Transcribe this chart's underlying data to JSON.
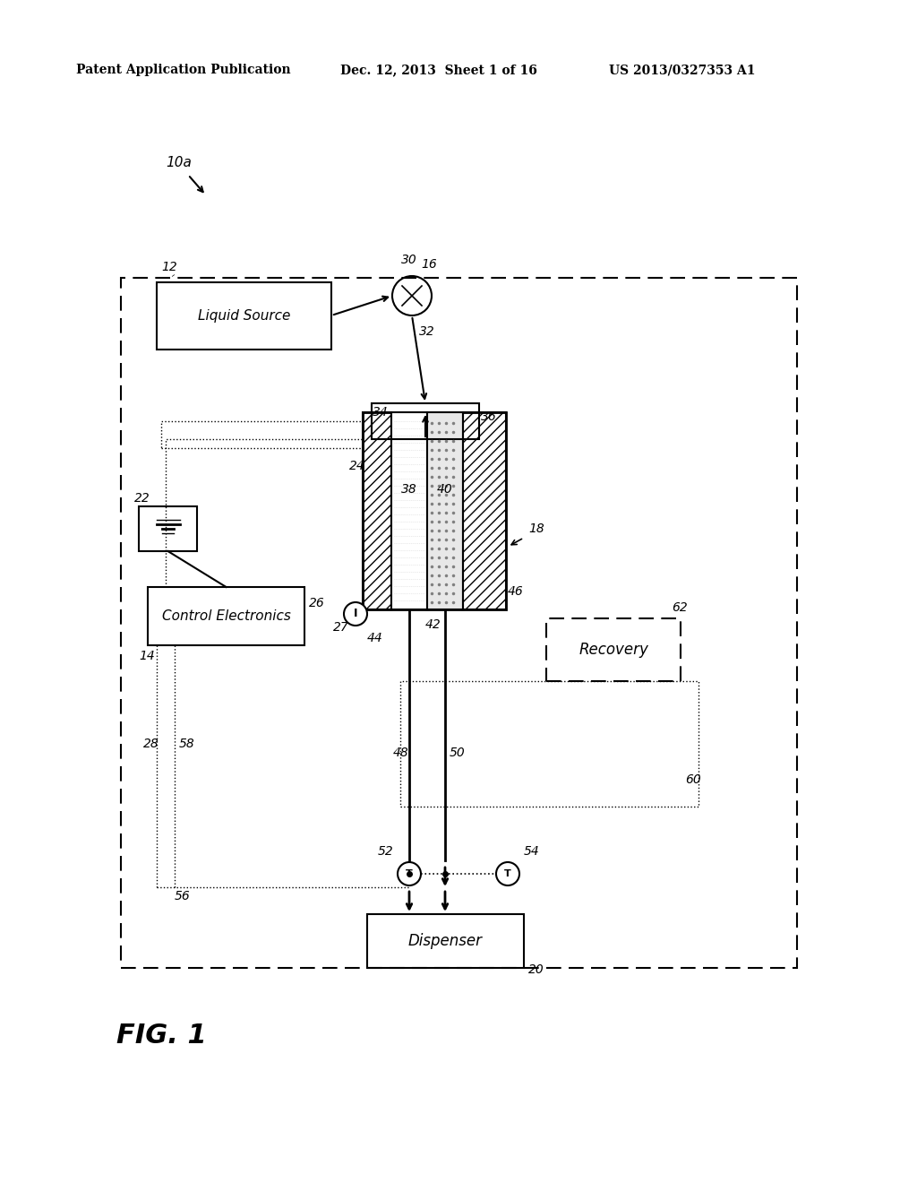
{
  "bg_color": "#ffffff",
  "header_left": "Patent Application Publication",
  "header_mid": "Dec. 12, 2013  Sheet 1 of 16",
  "header_right": "US 2013/0327353 A1",
  "fig_label": "FIG. 1",
  "label_10a": "10a",
  "label_12": "12",
  "label_14": "14",
  "label_16": "16",
  "label_18": "18",
  "label_20": "20",
  "label_22": "22",
  "label_24": "24",
  "label_26": "26",
  "label_27": "27",
  "label_28": "28",
  "label_30": "30",
  "label_32": "32",
  "label_34": "34",
  "label_36": "36",
  "label_38": "38",
  "label_40": "40",
  "label_42": "42",
  "label_44": "44",
  "label_46": "46",
  "label_48": "48",
  "label_50": "50",
  "label_52": "52",
  "label_54": "54",
  "label_56": "56",
  "label_58": "58",
  "label_60": "60",
  "label_62": "62",
  "box_liquid_source": "Liquid Source",
  "box_control_electronics": "Control Electronics",
  "box_dispenser": "Dispenser",
  "box_recovery": "Recovery"
}
